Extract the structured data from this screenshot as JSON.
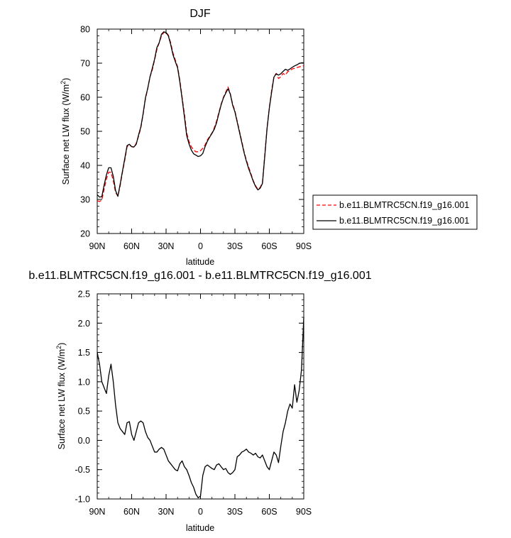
{
  "chart_data": [
    {
      "type": "line",
      "title": "DJF",
      "xlabel": "latitude",
      "ylabel": "Surface net LW flux (W/m",
      "ylabel_sup": "2",
      "ylabel_close": ")",
      "xlim": [
        90,
        -90
      ],
      "ylim": [
        20,
        80
      ],
      "x_ticks": [
        90,
        60,
        30,
        0,
        -30,
        -60,
        -90
      ],
      "x_tick_labels": [
        "90N",
        "60N",
        "30N",
        "0",
        "30S",
        "60S",
        "90S"
      ],
      "y_ticks": [
        20,
        30,
        40,
        50,
        60,
        70,
        80
      ],
      "y_tick_labels": [
        "20",
        "30",
        "40",
        "50",
        "60",
        "70",
        "80"
      ],
      "grid": false,
      "legend": "right",
      "x": [
        90,
        88,
        86,
        84,
        82,
        80,
        78,
        76,
        74,
        72,
        70,
        68,
        66,
        64,
        62,
        60,
        58,
        56,
        54,
        52,
        50,
        48,
        46,
        44,
        42,
        40,
        38,
        36,
        34,
        32,
        30,
        28,
        26,
        24,
        22,
        20,
        18,
        16,
        14,
        12,
        10,
        8,
        6,
        4,
        2,
        0,
        -2,
        -4,
        -6,
        -8,
        -10,
        -12,
        -14,
        -16,
        -18,
        -20,
        -22,
        -24,
        -26,
        -28,
        -30,
        -32,
        -34,
        -36,
        -38,
        -40,
        -42,
        -44,
        -46,
        -48,
        -50,
        -52,
        -54,
        -56,
        -58,
        -60,
        -62,
        -64,
        -66,
        -68,
        -70,
        -72,
        -74,
        -76,
        -78,
        -80,
        -82,
        -84,
        -86,
        -88,
        -90
      ],
      "series": [
        {
          "name": "b.e11.BLMTRC5CN.f19_g16.001",
          "style": "dashed",
          "color": "#ff0000",
          "values": [
            29.6,
            29.4,
            29.8,
            33,
            36,
            38,
            38,
            35.5,
            32,
            31,
            34,
            38,
            41.5,
            45.5,
            46,
            45.5,
            45.3,
            46.5,
            48.5,
            51,
            55,
            59.5,
            62.5,
            66,
            68,
            71,
            74,
            76,
            78,
            79,
            79.1,
            78.2,
            76,
            73,
            71,
            69,
            65,
            60,
            55,
            49.5,
            47,
            45.5,
            44.5,
            44,
            44,
            44.3,
            45,
            46,
            47.5,
            48.5,
            49.5,
            51,
            53,
            55.5,
            58,
            60,
            61.5,
            63,
            61,
            58,
            56,
            53,
            50,
            47,
            44,
            41.5,
            39.5,
            37.5,
            35.5,
            34,
            33,
            33.5,
            35,
            43,
            51,
            57,
            62,
            66,
            67,
            65.5,
            66,
            67,
            66.5,
            67.5,
            67.8,
            68.3,
            68.5,
            68.7,
            68.9,
            69.1,
            69.3
          ]
        },
        {
          "name": "b.e11.BLMTRC5CN.f19_g16.001",
          "style": "solid",
          "color": "#000000",
          "values": [
            31.4,
            30.7,
            30.8,
            34.2,
            37.2,
            39.3,
            39.3,
            36.8,
            32.6,
            30.9,
            34.5,
            38.3,
            42,
            45.8,
            46.2,
            45.5,
            45.4,
            46.2,
            48.9,
            51.3,
            55.2,
            59.8,
            62.6,
            66,
            68.5,
            71.2,
            74.6,
            76,
            78.5,
            79.2,
            79,
            78,
            75.5,
            72.5,
            70.5,
            68.7,
            64.5,
            59.5,
            54.2,
            48.7,
            46.3,
            44.5,
            43.4,
            43,
            42.6,
            42.8,
            43.5,
            45.5,
            47.1,
            48.3,
            49.4,
            50.6,
            52.5,
            55.2,
            57.8,
            59.8,
            61.2,
            62.5,
            60.9,
            57.7,
            55.7,
            52.7,
            49.7,
            46.7,
            43.7,
            41.2,
            39,
            37.2,
            35.3,
            33.8,
            32.8,
            33.3,
            34.7,
            42.6,
            50.8,
            56.8,
            61.5,
            65.9,
            66.9,
            66.5,
            66.9,
            67.6,
            68.2,
            67.9,
            68.3,
            68.8,
            69.2,
            69.5,
            69.9,
            70.1,
            70.1
          ]
        }
      ]
    },
    {
      "type": "line",
      "title": "b.e11.BLMTRC5CN.f19_g16.001 - b.e11.BLMTRC5CN.f19_g16.001",
      "xlabel": "latitude",
      "ylabel": "Surface net LW flux (W/m",
      "ylabel_sup": "2",
      "ylabel_close": ")",
      "xlim": [
        90,
        -90
      ],
      "ylim": [
        -1.0,
        2.5
      ],
      "x_ticks": [
        90,
        60,
        30,
        0,
        -30,
        -60,
        -90
      ],
      "x_tick_labels": [
        "90N",
        "60N",
        "30N",
        "0",
        "30S",
        "60S",
        "90S"
      ],
      "y_ticks": [
        -1.0,
        -0.5,
        0.0,
        0.5,
        1.0,
        1.5,
        2.0,
        2.5
      ],
      "y_tick_labels": [
        "-1.0",
        "-0.5",
        "0.0",
        "0.5",
        "1.0",
        "1.5",
        "2.0",
        "2.5"
      ],
      "grid": false,
      "x": [
        90,
        88,
        86,
        84,
        82,
        80,
        78,
        76,
        74,
        72,
        70,
        68,
        66,
        64,
        62,
        60,
        58,
        56,
        54,
        52,
        50,
        48,
        46,
        44,
        42,
        40,
        38,
        36,
        34,
        32,
        30,
        28,
        26,
        24,
        22,
        20,
        18,
        16,
        14,
        12,
        10,
        8,
        6,
        4,
        2,
        0,
        -2,
        -4,
        -6,
        -8,
        -10,
        -12,
        -14,
        -16,
        -18,
        -20,
        -22,
        -24,
        -26,
        -28,
        -30,
        -32,
        -34,
        -36,
        -38,
        -40,
        -42,
        -44,
        -46,
        -48,
        -50,
        -52,
        -54,
        -56,
        -58,
        -60,
        -62,
        -64,
        -66,
        -68,
        -70,
        -72,
        -74,
        -76,
        -78,
        -80,
        -82,
        -84,
        -86,
        -88,
        -90
      ],
      "series": [
        {
          "style": "solid",
          "color": "#000000",
          "values": [
            1.5,
            1.3,
            1.0,
            0.9,
            0.8,
            1.1,
            1.3,
            1.0,
            0.6,
            0.3,
            0.2,
            0.15,
            0.1,
            0.3,
            0.32,
            0.1,
            0.0,
            0.15,
            0.3,
            0.33,
            0.3,
            0.15,
            0.05,
            0.0,
            -0.1,
            -0.2,
            -0.2,
            -0.15,
            -0.12,
            -0.15,
            -0.25,
            -0.35,
            -0.4,
            -0.45,
            -0.5,
            -0.52,
            -0.4,
            -0.35,
            -0.45,
            -0.5,
            -0.6,
            -0.72,
            -0.8,
            -0.92,
            -0.98,
            -0.95,
            -0.6,
            -0.45,
            -0.42,
            -0.45,
            -0.48,
            -0.5,
            -0.42,
            -0.4,
            -0.45,
            -0.5,
            -0.48,
            -0.55,
            -0.58,
            -0.55,
            -0.5,
            -0.28,
            -0.25,
            -0.2,
            -0.18,
            -0.15,
            -0.2,
            -0.22,
            -0.25,
            -0.22,
            -0.28,
            -0.3,
            -0.25,
            -0.35,
            -0.45,
            -0.5,
            -0.35,
            -0.2,
            -0.25,
            -0.38,
            -0.1,
            0.15,
            0.3,
            0.5,
            0.62,
            0.55,
            0.95,
            0.65,
            0.85,
            1.2,
            2.1
          ]
        }
      ]
    }
  ]
}
